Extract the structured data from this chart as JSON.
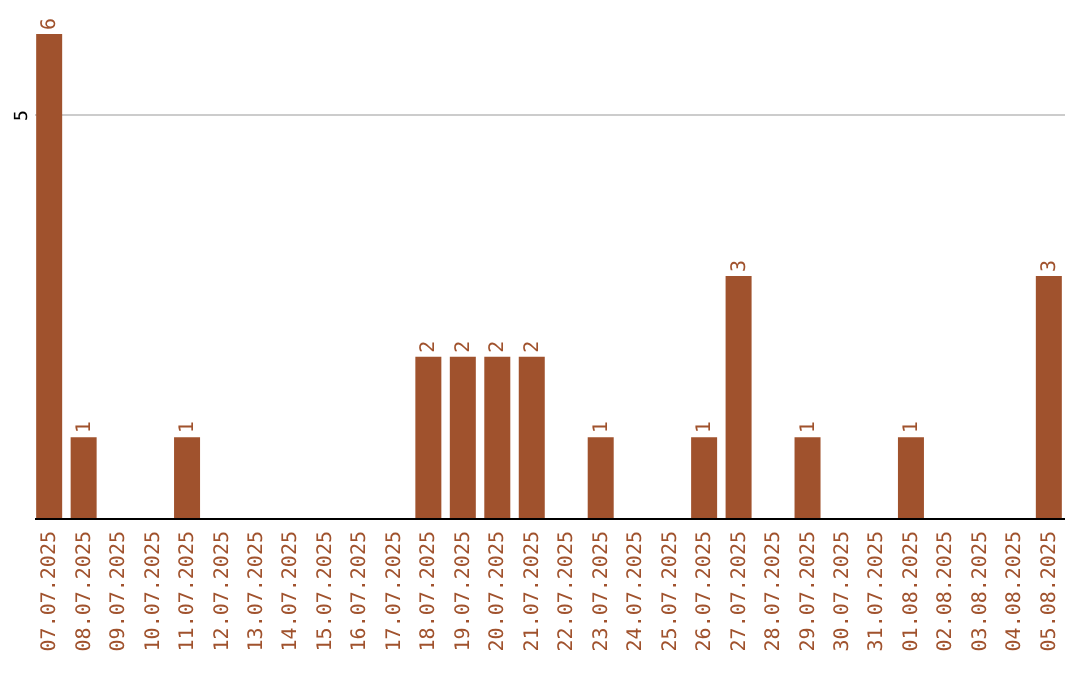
{
  "chart_data": {
    "type": "bar",
    "categories": [
      "07.07.2025",
      "08.07.2025",
      "09.07.2025",
      "10.07.2025",
      "11.07.2025",
      "12.07.2025",
      "13.07.2025",
      "14.07.2025",
      "15.07.2025",
      "16.07.2025",
      "17.07.2025",
      "18.07.2025",
      "19.07.2025",
      "20.07.2025",
      "21.07.2025",
      "22.07.2025",
      "23.07.2025",
      "24.07.2025",
      "25.07.2025",
      "26.07.2025",
      "27.07.2025",
      "28.07.2025",
      "29.07.2025",
      "30.07.2025",
      "31.07.2025",
      "01.08.2025",
      "02.08.2025",
      "03.08.2025",
      "04.08.2025",
      "05.08.2025"
    ],
    "values": [
      6,
      1,
      0,
      0,
      1,
      0,
      0,
      0,
      0,
      0,
      0,
      2,
      2,
      2,
      2,
      0,
      1,
      0,
      0,
      1,
      3,
      0,
      1,
      0,
      0,
      1,
      0,
      0,
      0,
      3
    ],
    "value_labels": [
      "6",
      "1",
      null,
      null,
      "1",
      null,
      null,
      null,
      null,
      null,
      null,
      "2",
      "2",
      "2",
      "2",
      null,
      "1",
      null,
      null,
      "1",
      "3",
      null,
      "1",
      null,
      null,
      "1",
      null,
      null,
      null,
      "3"
    ],
    "color": "#a0522d",
    "ylim": [
      0,
      6
    ],
    "yticks": [
      5
    ],
    "grid": "y"
  }
}
